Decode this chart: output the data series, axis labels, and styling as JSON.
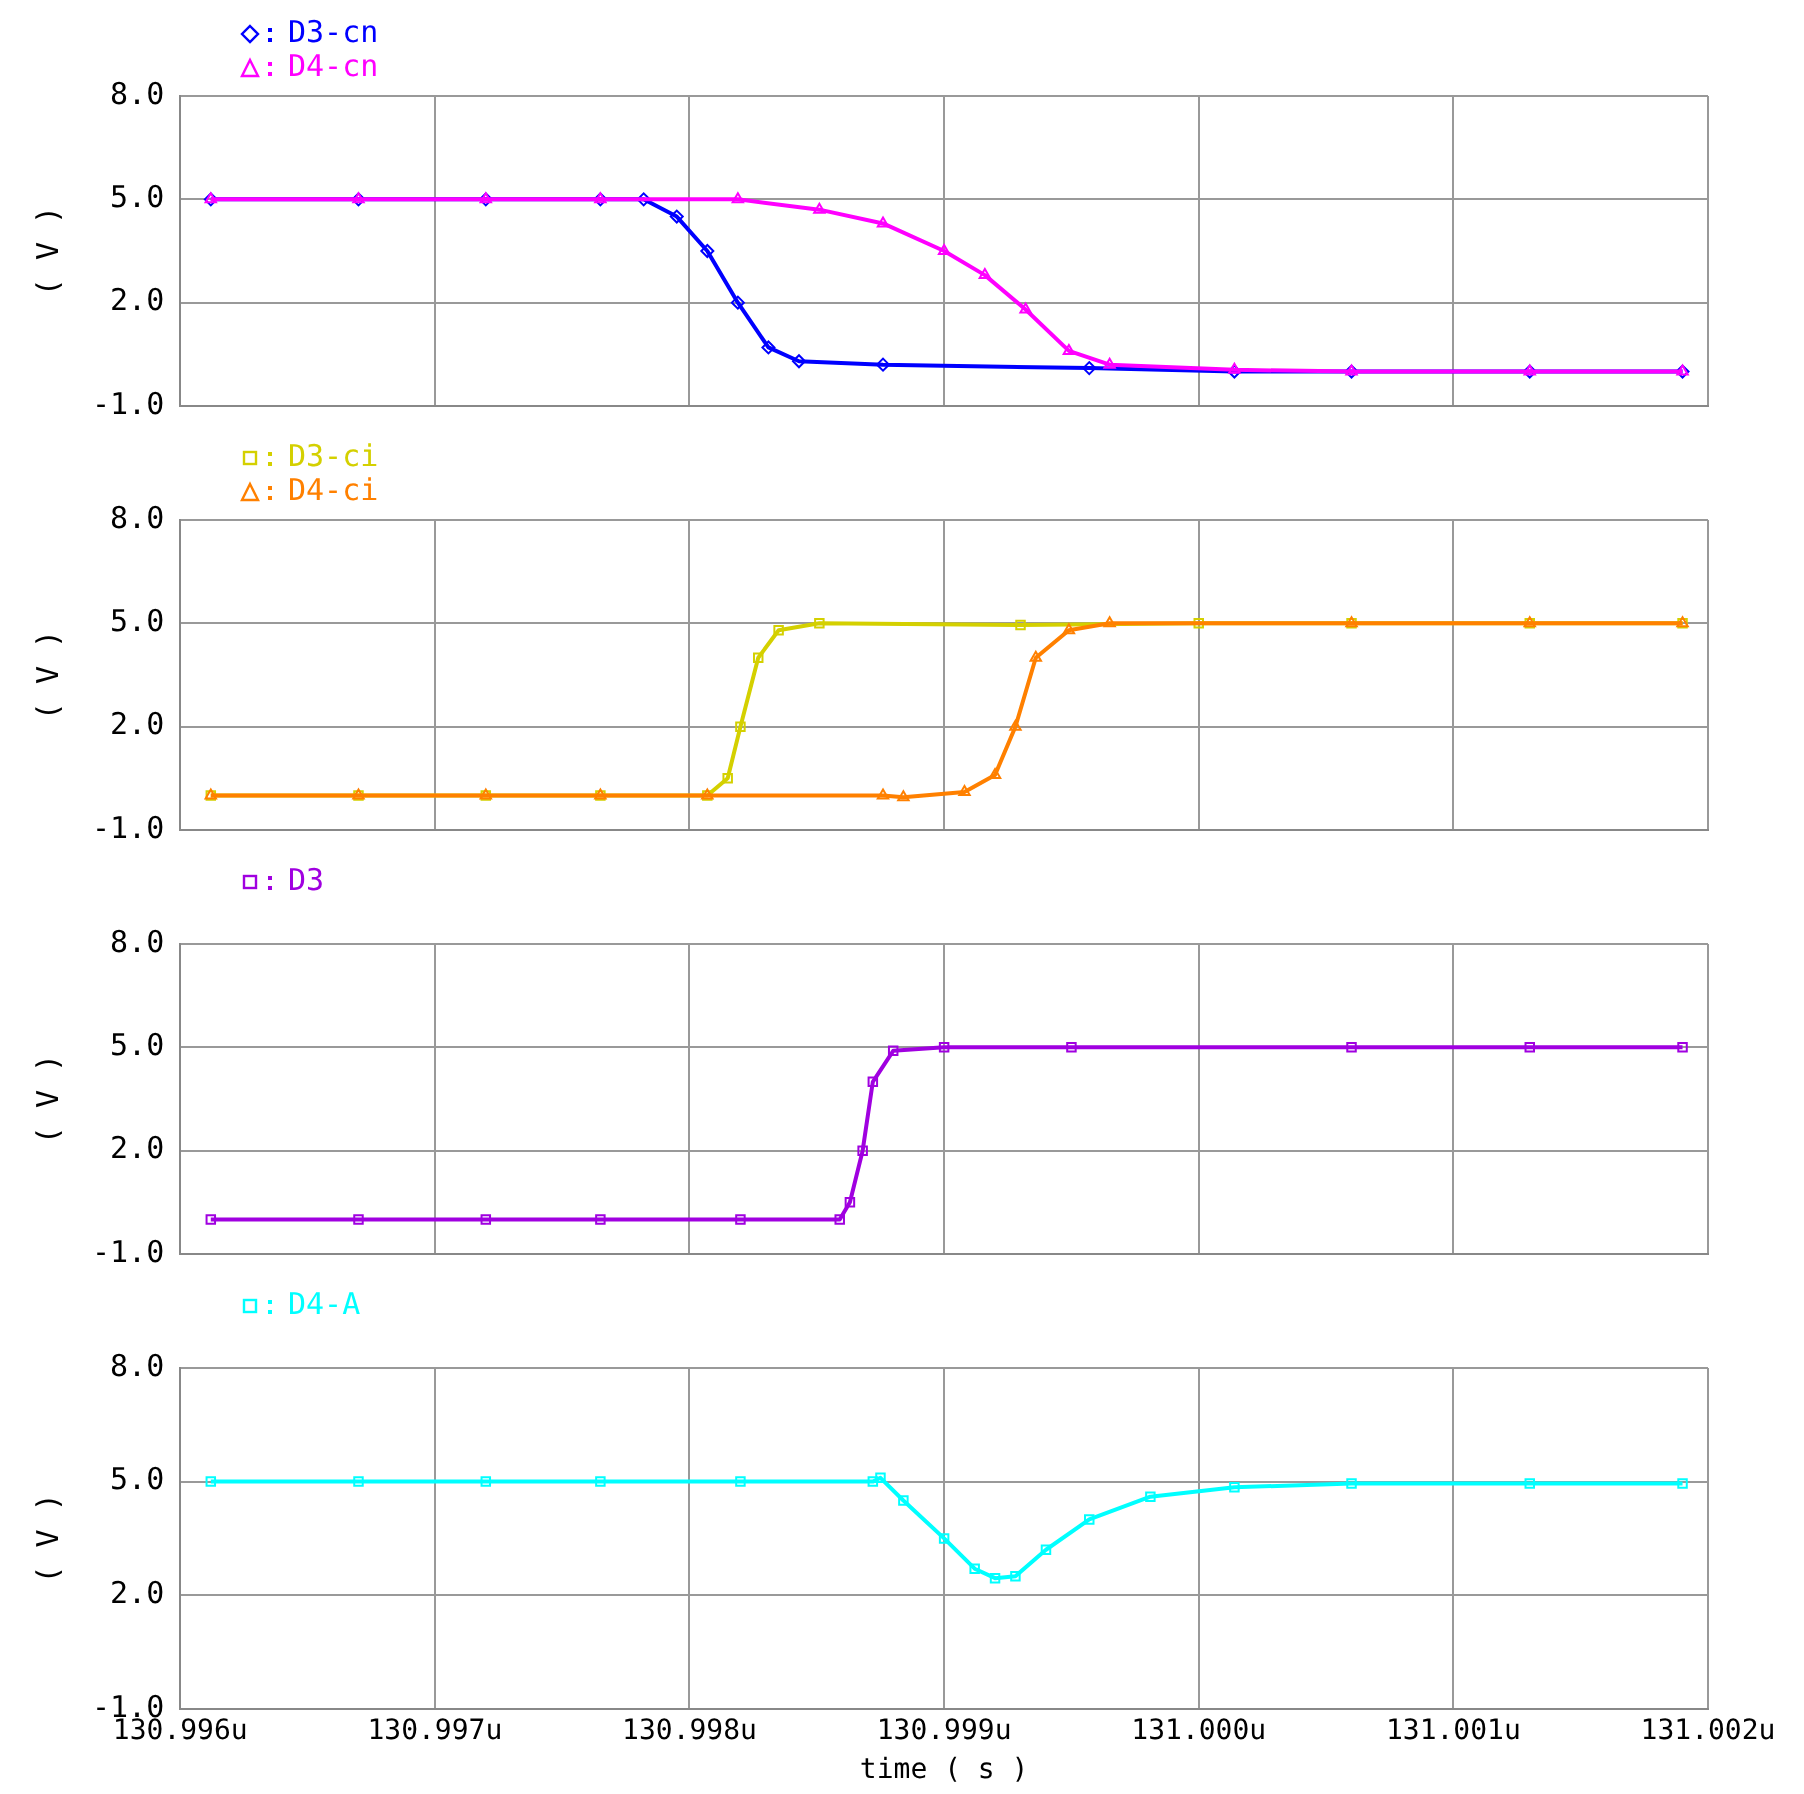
{
  "chart_data": [
    {
      "type": "line",
      "ylabel": "( V )",
      "xlim": [
        130.996,
        131.002
      ],
      "xticks": [
        130.996,
        130.997,
        130.998,
        130.999,
        131.0,
        131.001,
        131.002
      ],
      "ylim": [
        -1,
        8
      ],
      "yticks": [
        {
          "value": -1,
          "label": "-1.0"
        },
        {
          "value": 2,
          "label": "2.0"
        },
        {
          "value": 5,
          "label": "5.0"
        },
        {
          "value": 8,
          "label": "8.0"
        }
      ],
      "grid": true,
      "legend": "top left",
      "tick_labels": "y",
      "series": [
        {
          "name": "D3-cn",
          "color": "#0000ff",
          "marker": "diamond",
          "x": [
            130.99612,
            130.9967,
            130.9972,
            130.99765,
            130.99782,
            130.99795,
            130.99807,
            130.99819,
            130.99831,
            130.99843,
            130.99876,
            130.99957,
            131.00014,
            131.0006,
            131.0013,
            131.0019
          ],
          "values": [
            5,
            5,
            5,
            5,
            5,
            4.5,
            3.5,
            2,
            0.7,
            0.3,
            0.2,
            0.1,
            0,
            0,
            0,
            0
          ]
        },
        {
          "name": "D4-cn",
          "color": "#ff00ff",
          "marker": "triangle",
          "x": [
            130.99612,
            130.9967,
            130.9972,
            130.99765,
            130.99819,
            130.99851,
            130.99876,
            130.999,
            130.99916,
            130.99932,
            130.99949,
            130.99965,
            131.00014,
            131.0006,
            131.0013,
            131.0019
          ],
          "values": [
            5,
            5,
            5,
            5,
            5,
            4.7,
            4.3,
            3.5,
            2.8,
            1.8,
            0.6,
            0.2,
            0.05,
            0,
            0,
            0
          ]
        }
      ]
    },
    {
      "type": "line",
      "ylabel": "( V )",
      "xlim": [
        130.996,
        131.002
      ],
      "xticks": [
        130.996,
        130.997,
        130.998,
        130.999,
        131.0,
        131.001,
        131.002
      ],
      "ylim": [
        -1,
        8
      ],
      "yticks": [
        {
          "value": -1,
          "label": "-1.0"
        },
        {
          "value": 2,
          "label": "2.0"
        },
        {
          "value": 5,
          "label": "5.0"
        },
        {
          "value": 8,
          "label": "8.0"
        }
      ],
      "grid": true,
      "legend": "top left",
      "tick_labels": "y",
      "series": [
        {
          "name": "D3-ci",
          "color": "#d4d000",
          "marker": "square",
          "x": [
            130.99612,
            130.9967,
            130.9972,
            130.99765,
            130.99807,
            130.99815,
            130.9982,
            130.99827,
            130.99835,
            130.99851,
            130.9993,
            131.0,
            131.0006,
            131.0013,
            131.0019
          ],
          "values": [
            0,
            0,
            0,
            0,
            0,
            0.5,
            2,
            4,
            4.8,
            5,
            4.95,
            5,
            5,
            5,
            5
          ]
        },
        {
          "name": "D4-ci",
          "color": "#ff8000",
          "marker": "triangle",
          "x": [
            130.99612,
            130.9967,
            130.9972,
            130.99765,
            130.99807,
            130.99876,
            130.99884,
            130.99908,
            130.9992,
            130.99928,
            130.99936,
            130.99949,
            130.99965,
            131.0006,
            131.0013,
            131.0019
          ],
          "values": [
            0,
            0,
            0,
            0,
            0,
            0,
            -0.05,
            0.1,
            0.6,
            2,
            4,
            4.8,
            5,
            5,
            5,
            5
          ]
        }
      ]
    },
    {
      "type": "line",
      "ylabel": "( V )",
      "xlim": [
        130.996,
        131.002
      ],
      "xticks": [
        130.996,
        130.997,
        130.998,
        130.999,
        131.0,
        131.001,
        131.002
      ],
      "ylim": [
        -1,
        8
      ],
      "yticks": [
        {
          "value": -1,
          "label": "-1.0"
        },
        {
          "value": 2,
          "label": "2.0"
        },
        {
          "value": 5,
          "label": "5.0"
        },
        {
          "value": 8,
          "label": "8.0"
        }
      ],
      "grid": true,
      "legend": "top left",
      "tick_labels": "y",
      "series": [
        {
          "name": "D3",
          "color": "#a000e0",
          "marker": "square",
          "x": [
            130.99612,
            130.9967,
            130.9972,
            130.99765,
            130.9982,
            130.99859,
            130.99863,
            130.99868,
            130.99872,
            130.9988,
            130.999,
            130.9995,
            131.0006,
            131.0013,
            131.0019
          ],
          "values": [
            0,
            0,
            0,
            0,
            0,
            0,
            0.5,
            2,
            4,
            4.9,
            5,
            5,
            5,
            5,
            5
          ]
        }
      ]
    },
    {
      "type": "line",
      "xlabel": "time ( s )",
      "ylabel": "( V )",
      "xlim": [
        130.996,
        131.002
      ],
      "xticks": [
        {
          "value": 130.996,
          "label": "130.996u"
        },
        {
          "value": 130.997,
          "label": "130.997u"
        },
        {
          "value": 130.998,
          "label": "130.998u"
        },
        {
          "value": 130.999,
          "label": "130.999u"
        },
        {
          "value": 131.0,
          "label": "131.000u"
        },
        {
          "value": 131.001,
          "label": "131.001u"
        },
        {
          "value": 131.002,
          "label": "131.002u"
        }
      ],
      "ylim": [
        -1,
        8
      ],
      "yticks": [
        {
          "value": -1,
          "label": "-1.0"
        },
        {
          "value": 2,
          "label": "2.0"
        },
        {
          "value": 5,
          "label": "5.0"
        },
        {
          "value": 8,
          "label": "8.0"
        }
      ],
      "grid": true,
      "legend": "top left",
      "series": [
        {
          "name": "D4-A",
          "color": "#00ffff",
          "marker": "square",
          "x": [
            130.99612,
            130.9967,
            130.9972,
            130.99765,
            130.9982,
            130.99872,
            130.99875,
            130.99884,
            130.999,
            130.99912,
            130.9992,
            130.99928,
            130.9994,
            130.99957,
            130.99981,
            131.00014,
            131.0006,
            131.0013,
            131.0019
          ],
          "values": [
            5,
            5,
            5,
            5,
            5,
            5,
            5.1,
            4.5,
            3.5,
            2.7,
            2.45,
            2.5,
            3.2,
            4,
            4.6,
            4.85,
            4.95,
            4.95,
            4.95
          ]
        }
      ]
    }
  ]
}
